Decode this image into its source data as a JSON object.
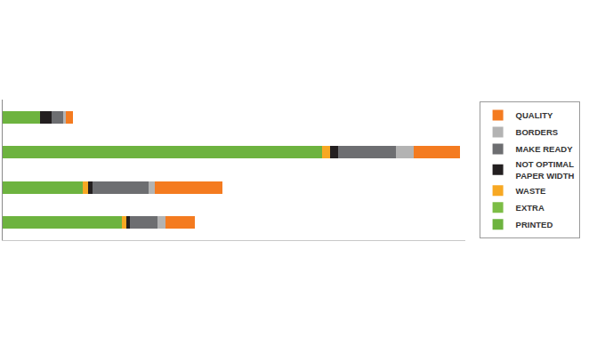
{
  "chart_data": {
    "type": "bar",
    "orientation": "horizontal",
    "stacked": true,
    "categories": [
      null,
      null,
      null,
      null
    ],
    "series": [
      {
        "name": "PRINTED",
        "color": "#6db33f",
        "values": [
          42,
          359,
          90,
          134
        ]
      },
      {
        "name": "EXTRA",
        "color": "#7cbd45",
        "values": [
          0,
          0,
          0,
          0
        ]
      },
      {
        "name": "WASTE",
        "color": "#f7a823",
        "values": [
          0,
          9,
          6,
          5
        ]
      },
      {
        "name": "NOT OPTIMAL PAPER WIDTH",
        "color": "#231f20",
        "values": [
          13,
          9,
          5,
          4
        ]
      },
      {
        "name": "MAKE READY",
        "color": "#6d6e71",
        "values": [
          13,
          65,
          63,
          31
        ]
      },
      {
        "name": "BORDERS",
        "color": "#b3b3b3",
        "values": [
          3,
          20,
          7,
          9
        ]
      },
      {
        "name": "QUALITY",
        "color": "#f47b20",
        "values": [
          8,
          52,
          76,
          33
        ]
      }
    ],
    "xlim": [
      0,
      520
    ],
    "xticks": [],
    "tick_labels": false,
    "grid": false,
    "legend": "right"
  }
}
